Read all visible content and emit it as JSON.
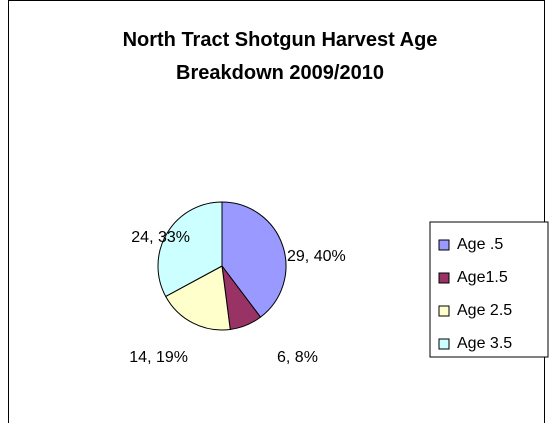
{
  "chart_data": {
    "type": "pie",
    "title": "North Tract Shotgun Harvest Age Breakdown 2009/2010",
    "categories": [
      "Age .5",
      "Age1.5",
      "Age 2.5",
      "Age 3.5"
    ],
    "values": [
      29,
      6,
      14,
      24
    ],
    "value_labels": [
      "29, 40%",
      "6, 8%",
      "14, 19%",
      "24, 33%"
    ],
    "colors": [
      "#9999ff",
      "#993366",
      "#ffffcc",
      "#ccffff"
    ],
    "legend": "right"
  }
}
